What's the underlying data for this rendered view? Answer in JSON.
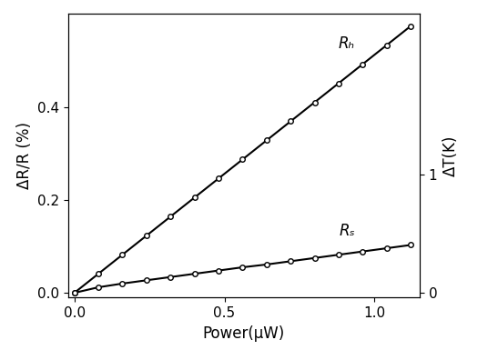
{
  "chart_data": {
    "type": "line",
    "x_label": "Power(μW)",
    "y_label": "ΔR/R (%)",
    "y2_label": "ΔT(K)",
    "x": [
      0.0,
      0.08,
      0.16,
      0.24,
      0.32,
      0.4,
      0.48,
      0.56,
      0.64,
      0.72,
      0.8,
      0.88,
      0.96,
      1.04,
      1.12
    ],
    "series": [
      {
        "name": "Rₕ",
        "color": "#000000",
        "marker": "o",
        "line_style": "solid",
        "values": [
          0.0,
          0.041,
          0.082,
          0.123,
          0.164,
          0.205,
          0.246,
          0.287,
          0.328,
          0.369,
          0.41,
          0.451,
          0.492,
          0.533,
          0.574
        ]
      },
      {
        "name": "Rₛ",
        "color": "#000000",
        "marker": "o",
        "line_style": "solid",
        "values": [
          0.0,
          0.012,
          0.02,
          0.027,
          0.034,
          0.041,
          0.048,
          0.055,
          0.061,
          0.068,
          0.075,
          0.082,
          0.089,
          0.096,
          0.103
        ]
      }
    ],
    "xlim": [
      -0.02,
      1.15
    ],
    "xticks": [
      0.0,
      0.5,
      1.0
    ],
    "ylim": [
      -0.01,
      0.6
    ],
    "yticks": [
      0.0,
      0.2,
      0.4
    ],
    "y2lim": [
      -0.04,
      2.35
    ],
    "y2ticks": [
      0,
      1
    ],
    "grid": false
  }
}
